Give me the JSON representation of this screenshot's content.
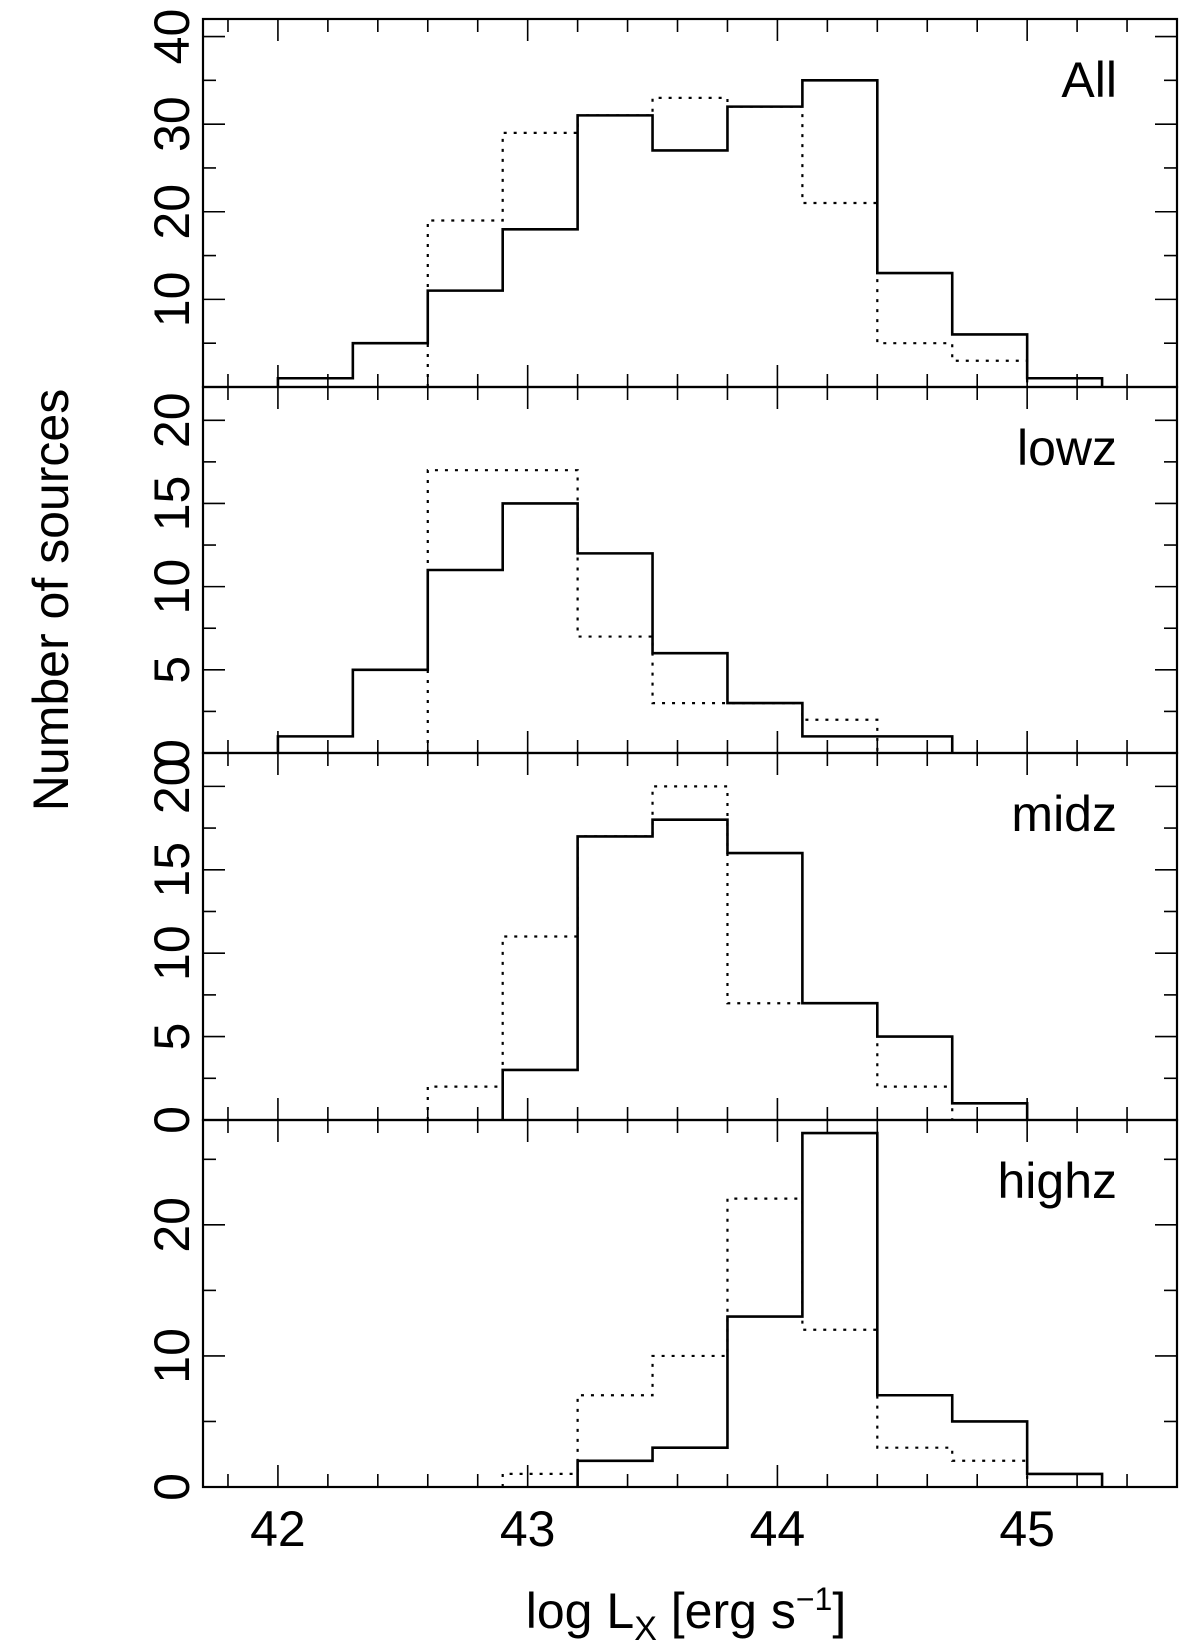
{
  "chart_data": {
    "type": "step-histogram",
    "xlabel": {
      "main": "log L",
      "sub": "X",
      "rest": " [erg s",
      "sup": "−1",
      "end": "]"
    },
    "ylabel": "Number of sources",
    "xlim": [
      41.7,
      45.6
    ],
    "xticks": [
      42,
      43,
      44,
      45
    ],
    "x_minor_step": 0.2,
    "bin_edges": [
      42.0,
      42.3,
      42.6,
      42.9,
      43.2,
      43.5,
      43.8,
      44.1,
      44.4,
      44.7,
      45.0,
      45.3
    ],
    "panels": [
      {
        "label": "All",
        "ylim": [
          0,
          42
        ],
        "yticks": [
          10,
          20,
          30,
          40
        ],
        "solid": [
          1,
          5,
          11,
          18,
          31,
          27,
          32,
          35,
          13,
          6,
          1
        ],
        "dotted": [
          0,
          0,
          19,
          29,
          31,
          33,
          32,
          21,
          5,
          3,
          0
        ]
      },
      {
        "label": "lowz",
        "ylim": [
          0,
          22
        ],
        "yticks": [
          0,
          5,
          10,
          15,
          20
        ],
        "ytick_labels": [
          "0",
          "5",
          "10",
          "15",
          "20"
        ],
        "solid": [
          1,
          5,
          11,
          15,
          12,
          6,
          3,
          1,
          1,
          0,
          0
        ],
        "dotted": [
          0,
          0,
          17,
          17,
          7,
          3,
          3,
          2,
          0,
          0,
          0
        ]
      },
      {
        "label": "midz",
        "ylim": [
          0,
          22
        ],
        "yticks": [
          0,
          5,
          10,
          15,
          20
        ],
        "ytick_labels": [
          "0",
          "5",
          "10",
          "15",
          "20"
        ],
        "solid": [
          0,
          0,
          0,
          3,
          17,
          18,
          16,
          7,
          5,
          1,
          0
        ],
        "dotted": [
          0,
          0,
          2,
          11,
          17,
          20,
          7,
          7,
          2,
          0,
          0
        ]
      },
      {
        "label": "highz",
        "ylim": [
          0,
          28
        ],
        "yticks": [
          0,
          10,
          20
        ],
        "solid": [
          0,
          0,
          0,
          0,
          2,
          3,
          13,
          27,
          7,
          5,
          1
        ],
        "dotted": [
          0,
          0,
          0,
          1,
          7,
          10,
          22,
          12,
          3,
          2,
          0
        ]
      }
    ]
  }
}
